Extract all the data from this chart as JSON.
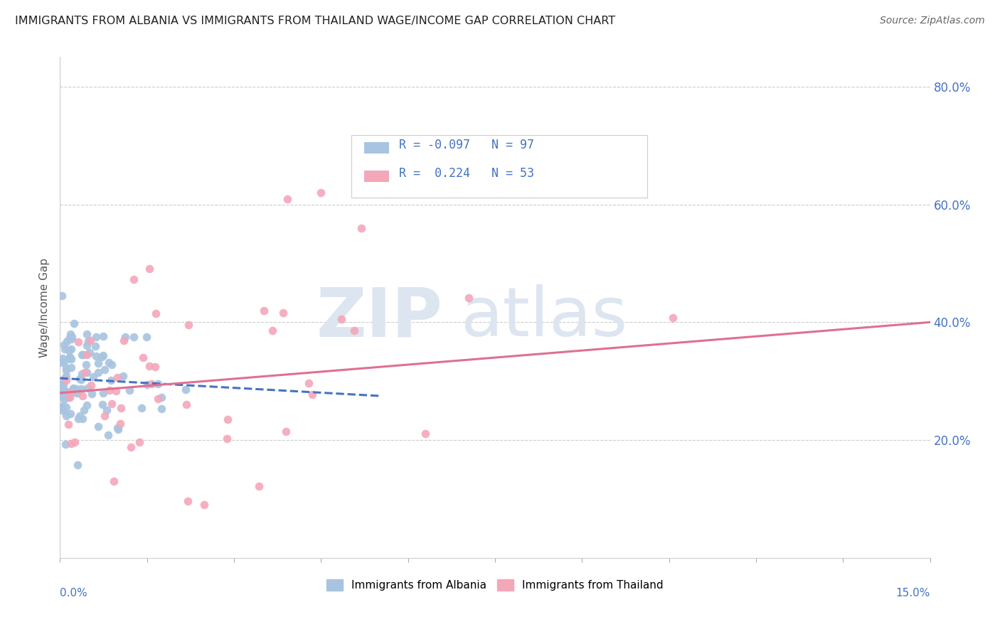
{
  "title": "IMMIGRANTS FROM ALBANIA VS IMMIGRANTS FROM THAILAND WAGE/INCOME GAP CORRELATION CHART",
  "source": "Source: ZipAtlas.com",
  "ylabel": "Wage/Income Gap",
  "xmin": 0.0,
  "xmax": 15.0,
  "ymin": 0.0,
  "ymax": 85.0,
  "right_yticks": [
    20.0,
    40.0,
    60.0,
    80.0
  ],
  "albania_color": "#a8c4e0",
  "thailand_color": "#f4a7b9",
  "albania_R": -0.097,
  "albania_N": 97,
  "thailand_R": 0.224,
  "thailand_N": 53,
  "albania_label": "Immigrants from Albania",
  "thailand_label": "Immigrants from Thailand",
  "background_color": "#ffffff",
  "trend_blue": "#4472c4",
  "trend_pink": "#e07090",
  "albania_line_x": [
    0.0,
    5.5
  ],
  "albania_line_y": [
    30.5,
    27.5
  ],
  "thailand_line_x": [
    0.0,
    15.0
  ],
  "thailand_line_y": [
    28.0,
    40.0
  ]
}
